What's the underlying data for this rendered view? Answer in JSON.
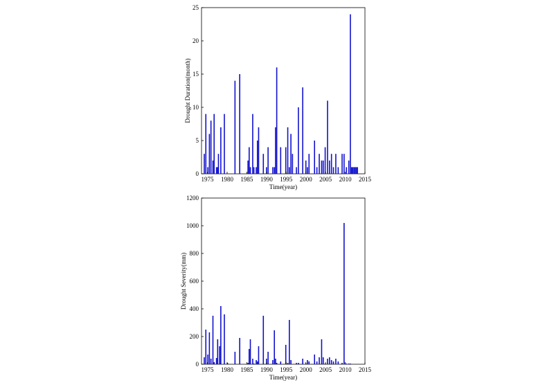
{
  "chart_data": [
    {
      "type": "bar",
      "xlabel": "Time(year)",
      "ylabel": "Drought Duration(month)",
      "xlim": [
        1973.5,
        2015
      ],
      "ylim": [
        0,
        25
      ],
      "xticks": [
        1975,
        1980,
        1985,
        1990,
        1995,
        2000,
        2005,
        2010,
        2015
      ],
      "yticks": [
        0,
        5,
        10,
        15,
        20,
        25
      ],
      "color": "#1010cc",
      "x": [
        1974.2,
        1974.6,
        1975.1,
        1975.5,
        1975.9,
        1976.4,
        1976.7,
        1977.3,
        1977.6,
        1977.8,
        1978.4,
        1979.3,
        1982.0,
        1983.2,
        1985.3,
        1985.6,
        1985.9,
        1986.5,
        1986.8,
        1987.4,
        1987.7,
        1988.0,
        1989.2,
        1990.0,
        1990.4,
        1991.6,
        1992.0,
        1992.3,
        1992.6,
        1993.6,
        1994.9,
        1995.4,
        1995.8,
        1996.2,
        1996.6,
        1997.6,
        1998.1,
        1999.2,
        2000.0,
        2000.4,
        2000.8,
        2002.2,
        2002.8,
        2003.4,
        2004.0,
        2004.4,
        2004.9,
        2005.5,
        2006.0,
        2006.5,
        2007.0,
        2007.6,
        2008.2,
        2009.2,
        2009.7,
        2010.3,
        2010.9,
        2011.3,
        2011.6,
        2011.9,
        2012.2,
        2012.5,
        2012.8,
        2013.1
      ],
      "values": [
        3,
        9,
        1,
        6,
        8,
        2,
        9,
        1,
        1,
        3,
        7,
        9,
        14,
        15,
        2,
        4,
        1,
        9,
        1,
        1,
        5,
        7,
        3,
        1,
        4,
        1,
        1,
        7,
        16,
        4,
        4,
        7,
        1,
        6,
        3,
        1,
        10,
        13,
        2,
        1,
        3,
        5,
        1,
        3,
        2,
        2,
        4,
        11,
        2,
        3,
        1,
        3,
        1,
        3,
        3,
        1,
        2,
        24,
        1,
        1,
        1,
        1,
        1,
        1
      ]
    },
    {
      "type": "bar",
      "xlabel": "Time(year)",
      "ylabel": "Drought Severity(mm)",
      "xlim": [
        1973.5,
        2015
      ],
      "ylim": [
        0,
        1200
      ],
      "xticks": [
        1975,
        1980,
        1985,
        1990,
        1995,
        2000,
        2005,
        2010,
        2015
      ],
      "yticks": [
        0,
        200,
        400,
        600,
        800,
        1000,
        1200
      ],
      "color": "#1010cc",
      "x": [
        1974.2,
        1974.6,
        1975.1,
        1975.5,
        1975.9,
        1976.4,
        1976.7,
        1977.3,
        1977.6,
        1978.1,
        1978.4,
        1979.3,
        1980.1,
        1982.0,
        1983.2,
        1985.3,
        1985.6,
        1985.9,
        1986.5,
        1986.8,
        1987.4,
        1987.7,
        1988.0,
        1989.2,
        1990.0,
        1990.4,
        1991.6,
        1992.0,
        1992.3,
        1992.6,
        1993.6,
        1994.9,
        1995.4,
        1995.8,
        1996.2,
        1997.6,
        1998.1,
        1999.2,
        2000.0,
        2000.4,
        2000.8,
        2002.2,
        2002.8,
        2003.4,
        2004.0,
        2004.4,
        2004.9,
        2005.5,
        2006.0,
        2006.5,
        2007.0,
        2007.6,
        2008.2,
        2009.2,
        2009.7,
        2010.3,
        2010.9,
        2011.3
      ],
      "values": [
        50,
        250,
        70,
        230,
        40,
        350,
        15,
        45,
        180,
        130,
        420,
        360,
        10,
        90,
        190,
        10,
        110,
        180,
        40,
        5,
        30,
        20,
        130,
        350,
        40,
        90,
        30,
        245,
        40,
        10,
        20,
        140,
        10,
        320,
        30,
        10,
        10,
        40,
        5,
        30,
        20,
        70,
        20,
        50,
        180,
        50,
        5,
        40,
        50,
        30,
        20,
        40,
        20,
        10,
        1020,
        5,
        5,
        5
      ]
    }
  ]
}
